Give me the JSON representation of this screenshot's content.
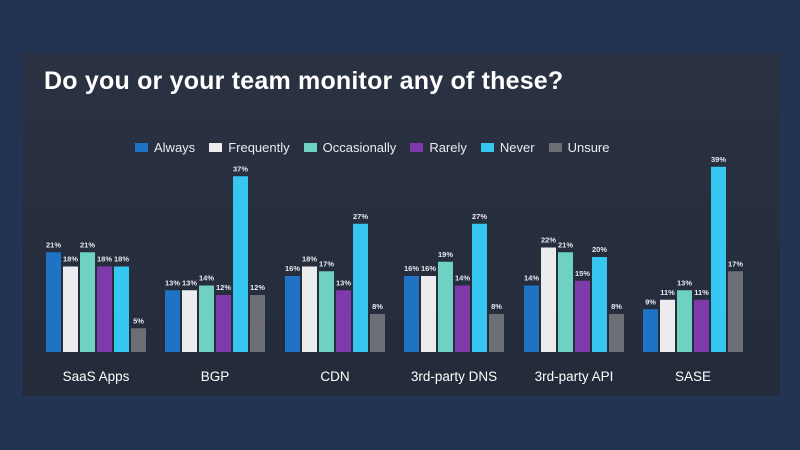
{
  "title": "Do you or your team monitor any of these?",
  "chart_data": {
    "type": "bar",
    "title": "Do you or your team monitor any of these?",
    "categories": [
      "SaaS Apps",
      "BGP",
      "CDN",
      "3rd-party DNS",
      "3rd-party API",
      "SASE"
    ],
    "series": [
      {
        "name": "Always",
        "color": "#1f72c4",
        "values": [
          21,
          13,
          16,
          16,
          14,
          9
        ],
        "labels": [
          "21%",
          "13%",
          "16%",
          "16%",
          "14%",
          "9%"
        ]
      },
      {
        "name": "Frequently",
        "color": "#ececef",
        "values": [
          18,
          13,
          18,
          16,
          22,
          11
        ],
        "labels": [
          "18%",
          "13%",
          "18%",
          "16%",
          "22%",
          "11%"
        ]
      },
      {
        "name": "Occasionally",
        "color": "#6fd1c2",
        "values": [
          21,
          14,
          17,
          19,
          21,
          13
        ],
        "labels": [
          "21%",
          "14%",
          "17%",
          "19%",
          "21%",
          "13%"
        ]
      },
      {
        "name": "Rarely",
        "color": "#7d3aa8",
        "values": [
          18,
          12,
          13,
          14,
          15,
          11
        ],
        "labels": [
          "18%",
          "12%",
          "13%",
          "14%",
          "15%",
          "11%"
        ]
      },
      {
        "name": "Never",
        "color": "#37c6ef",
        "values": [
          18,
          37,
          27,
          27,
          20,
          39
        ],
        "labels": [
          "18%",
          "37%",
          "27%",
          "27%",
          "20%",
          "39%"
        ]
      },
      {
        "name": "Unsure",
        "color": "#6b6e75",
        "values": [
          5,
          12,
          8,
          8,
          8,
          17
        ],
        "labels": [
          "5%",
          "12%",
          "8%",
          "8%",
          "8%",
          "17%"
        ]
      }
    ],
    "ylim": [
      0,
      40
    ],
    "grid": false,
    "legend": "top"
  }
}
